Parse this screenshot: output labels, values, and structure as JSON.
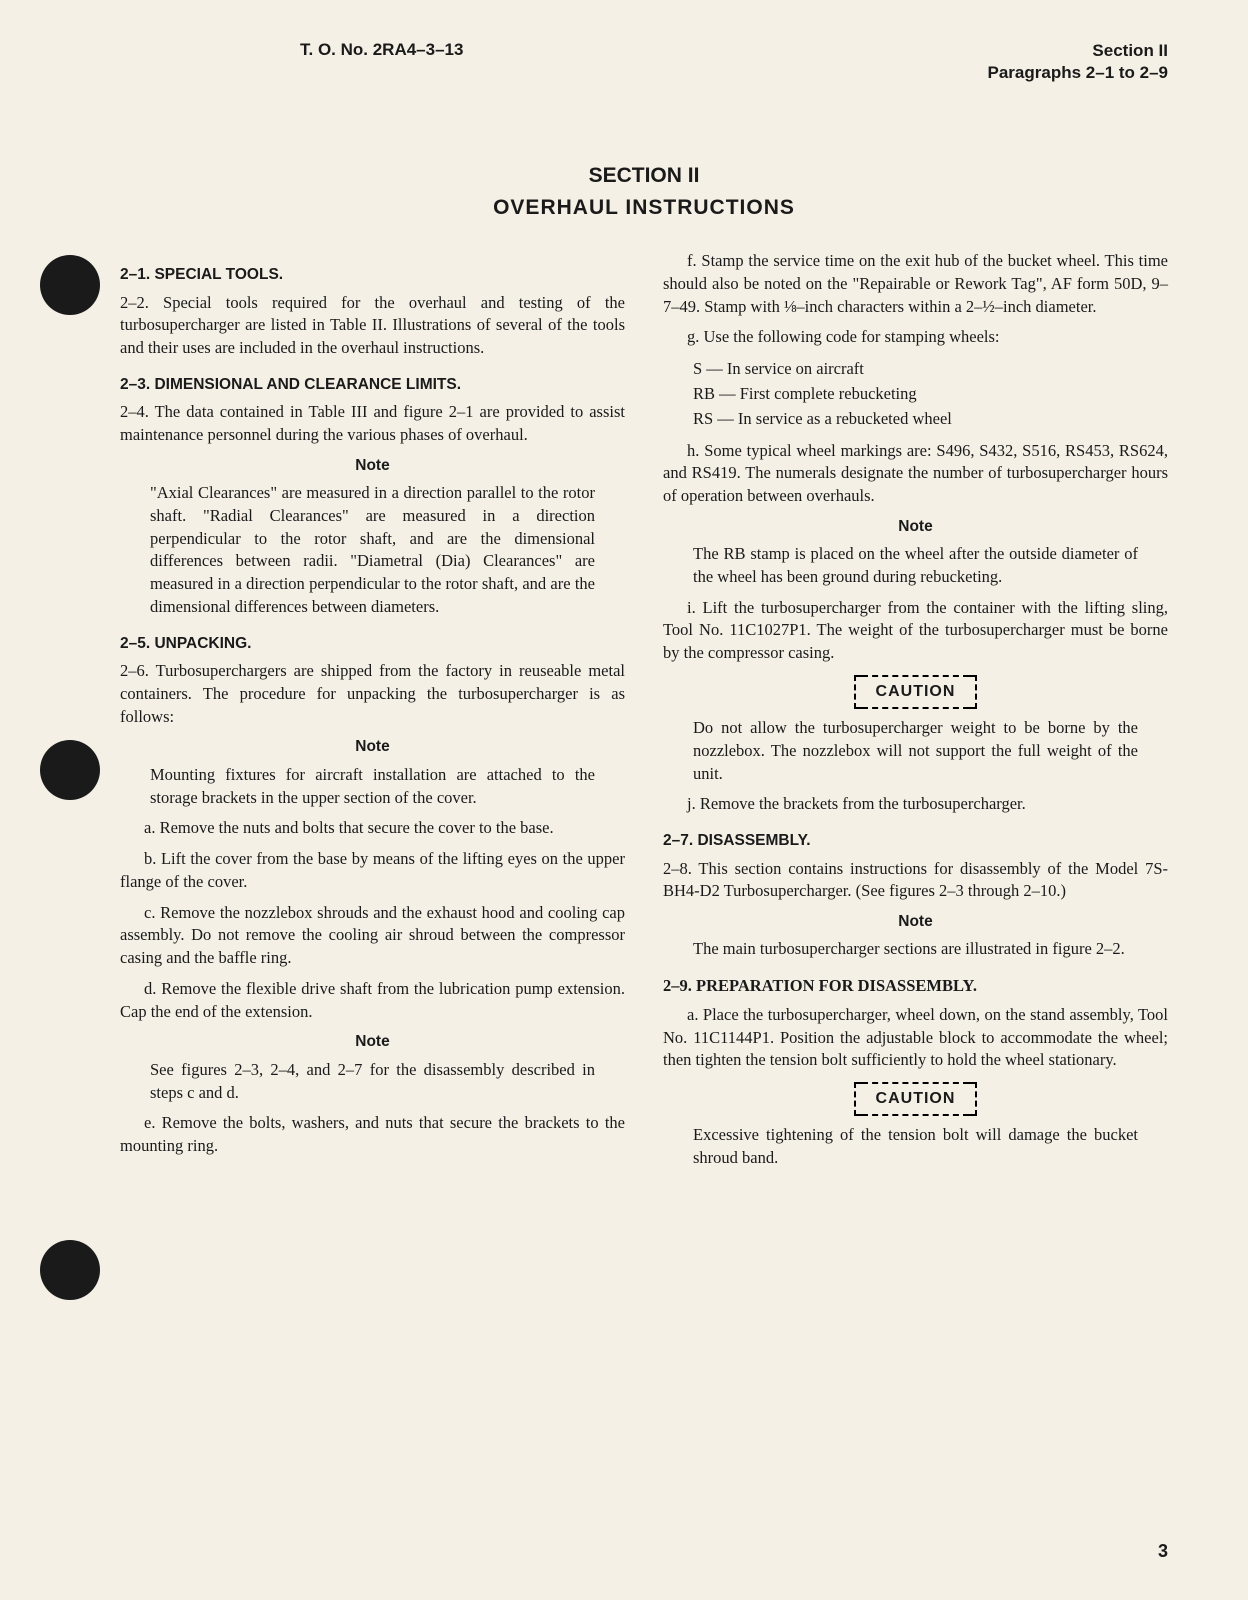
{
  "header": {
    "to_number": "T. O. No. 2RA4–3–13",
    "section": "Section II",
    "paragraphs": "Paragraphs 2–1 to 2–9"
  },
  "title": {
    "section": "SECTION II",
    "subtitle": "OVERHAUL INSTRUCTIONS"
  },
  "col1": {
    "h1": "2–1. SPECIAL TOOLS.",
    "p1": "2–2. Special tools required for the overhaul and testing of the turbosupercharger are listed in Table II. Illustrations of several of the tools and their uses are included in the overhaul instructions.",
    "h2": "2–3. DIMENSIONAL AND CLEARANCE LIMITS.",
    "p2": "2–4. The data contained in Table III and figure 2–1 are provided to assist maintenance personnel during the various phases of overhaul.",
    "note1_label": "Note",
    "note1": "\"Axial Clearances\" are measured in a direction parallel to the rotor shaft. \"Radial Clearances\" are measured in a direction perpendicular to the rotor shaft, and are the dimensional differences between radii. \"Diametral (Dia) Clearances\" are measured in a direction perpendicular to the rotor shaft, and are the dimensional differences between diameters.",
    "h3": "2–5. UNPACKING.",
    "p3": "2–6. Turbosuperchargers are shipped from the factory in reuseable metal containers. The procedure for unpacking the turbosupercharger is as follows:",
    "note2_label": "Note",
    "note2": "Mounting fixtures for aircraft installation are attached to the storage brackets in the upper section of the cover.",
    "pa": "a. Remove the nuts and bolts that secure the cover to the base.",
    "pb": "b. Lift the cover from the base by means of the lifting eyes on the upper flange of the cover.",
    "pc": "c. Remove the nozzlebox shrouds and the exhaust hood and cooling cap assembly. Do not remove the cooling air shroud between the compressor casing and the baffle ring.",
    "pd": "d. Remove the flexible drive shaft from the lubrication pump extension. Cap the end of the extension.",
    "note3_label": "Note",
    "note3": "See figures 2–3, 2–4, and 2–7 for the disassembly described in steps c and d.",
    "pe": "e. Remove the bolts, washers, and nuts that secure the brackets to the mounting ring."
  },
  "col2": {
    "pf": "f. Stamp the service time on the exit hub of the bucket wheel. This time should also be noted on the \"Repairable or Rework Tag\", AF form 50D, 9–7–49. Stamp with ⅛–inch characters within a 2–½–inch diameter.",
    "pg": "g. Use the following code for stamping wheels:",
    "code_s": "S    — In service on aircraft",
    "code_rb": "RB — First complete rebucketing",
    "code_rs": "RS — In service as a rebucketed wheel",
    "ph": "h. Some typical wheel markings are: S496, S432, S516, RS453, RS624, and RS419. The numerals designate the number of turbosupercharger hours of operation between overhauls.",
    "note4_label": "Note",
    "note4": "The RB stamp is placed on the wheel after the outside diameter of the wheel has been ground during rebucketing.",
    "pi": "i. Lift the turbosupercharger from the container with the lifting sling, Tool No. 11C1027P1. The weight of the turbosupercharger must be borne by the compressor casing.",
    "caution1": "CAUTION",
    "caution1_body": "Do not allow the turbosupercharger weight to be borne by the nozzlebox. The nozzlebox will not support the full weight of the unit.",
    "pj": "j. Remove the brackets from the turbosupercharger.",
    "h4": "2–7. DISASSEMBLY.",
    "p4": "2–8. This section contains instructions for disassembly of the Model 7S-BH4-D2 Turbosupercharger. (See figures 2–3 through 2–10.)",
    "note5_label": "Note",
    "note5": "The main turbosupercharger sections are illustrated in figure 2–2.",
    "h5": "2–9. PREPARATION FOR DISASSEMBLY.",
    "p5": "a. Place the turbosupercharger, wheel down, on the stand assembly, Tool No. 11C1144P1. Position the adjustable block to accommodate the wheel; then tighten the tension bolt sufficiently to hold the wheel stationary.",
    "caution2": "CAUTION",
    "caution2_body": "Excessive tightening of the tension bolt will damage the bucket shroud band."
  },
  "page_number": "3"
}
